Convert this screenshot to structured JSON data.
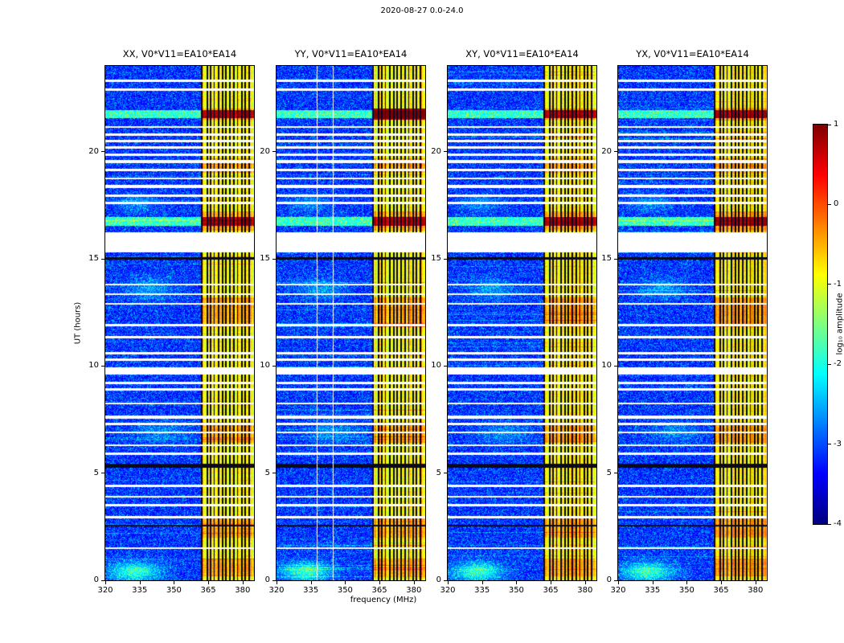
{
  "title": "2020-08-27 0.0-24.0",
  "chart_data": {
    "type": "heatmap",
    "title": "2020-08-27 0.0-24.0",
    "xlabel": "frequency (MHz)",
    "ylabel": "UT (hours)",
    "x_range": [
      320,
      385
    ],
    "x_ticks": [
      320,
      335,
      350,
      365,
      380
    ],
    "y_range": [
      0,
      24
    ],
    "y_ticks": [
      0,
      5,
      10,
      15,
      20
    ],
    "colorbar": {
      "label": "log₁₀ amplitude",
      "ticks": [
        1,
        0,
        -1,
        -2,
        -3,
        -4
      ],
      "range": [
        -4,
        1
      ],
      "colormap": "jet"
    },
    "panels": [
      {
        "id": "XX",
        "title": "XX, V0*V11=EA10*EA14",
        "seed": 11,
        "white_channels": [],
        "red_band_rows": []
      },
      {
        "id": "YY",
        "title": "YY, V0*V11=EA10*EA14",
        "seed": 22,
        "white_channels": [
          337.6,
          344.8
        ],
        "red_band_rows": [
          [
            21.5,
            22.0
          ]
        ]
      },
      {
        "id": "XY",
        "title": "XY, V0*V11=EA10*EA14",
        "seed": 33,
        "white_channels": [],
        "red_band_rows": []
      },
      {
        "id": "YX",
        "title": "YX, V0*V11=EA10*EA14",
        "seed": 44,
        "white_channels": [],
        "red_band_rows": []
      }
    ],
    "features": {
      "band": {
        "f0": 361.8,
        "f1": 385
      },
      "flagged_channels_mhz": [
        362.3,
        364.6,
        366.1,
        367.6,
        369.6,
        371.2,
        372.8,
        374.6,
        376.2,
        377.8,
        379.6,
        381.2,
        383.0
      ],
      "white_rows": [
        [
          23.25,
          23.35
        ],
        [
          22.85,
          22.95
        ],
        [
          21.1,
          21.2
        ],
        [
          20.75,
          20.85
        ],
        [
          20.45,
          20.55
        ],
        [
          20.15,
          20.25
        ],
        [
          19.8,
          19.9
        ],
        [
          19.45,
          19.6
        ],
        [
          19.1,
          19.2
        ],
        [
          18.7,
          18.8
        ],
        [
          18.3,
          18.45
        ],
        [
          17.9,
          18.0
        ],
        [
          17.55,
          17.65
        ],
        [
          13.75,
          13.85
        ],
        [
          13.3,
          13.4
        ],
        [
          12.85,
          12.95
        ],
        [
          11.85,
          11.95
        ],
        [
          11.3,
          11.4
        ],
        [
          10.55,
          10.65
        ],
        [
          10.25,
          10.35
        ],
        [
          9.15,
          9.25
        ],
        [
          8.85,
          8.95
        ],
        [
          8.2,
          8.3
        ],
        [
          7.55,
          7.7
        ],
        [
          7.25,
          7.35
        ],
        [
          6.85,
          6.95
        ],
        [
          6.25,
          6.35
        ],
        [
          5.85,
          5.95
        ],
        [
          4.35,
          4.45
        ],
        [
          3.85,
          3.95
        ],
        [
          3.45,
          3.55
        ],
        [
          2.9,
          3.0
        ],
        [
          1.45,
          1.55
        ]
      ],
      "black_rows": [
        [
          14.95,
          15.08
        ],
        [
          5.25,
          5.45
        ],
        [
          2.5,
          2.6
        ]
      ],
      "bright_rows": [
        [
          21.55,
          21.95
        ],
        [
          16.55,
          16.95
        ]
      ],
      "hot_band_rows": [
        [
          0.2,
          1.0
        ],
        [
          2.0,
          2.9
        ],
        [
          6.4,
          7.4
        ],
        [
          11.8,
          13.2
        ],
        [
          16.3,
          17.2
        ],
        [
          19.0,
          19.7
        ],
        [
          21.5,
          22.0
        ]
      ],
      "gaps": [
        [
          15.3,
          16.25
        ],
        [
          9.6,
          9.95
        ]
      ],
      "blobs": [
        {
          "t": 0.4,
          "f": 333,
          "dt": 0.45,
          "df": 11,
          "amp": 1.3
        },
        {
          "t": 13.6,
          "f": 339,
          "dt": 0.5,
          "df": 10,
          "amp": 0.55
        },
        {
          "t": 17.6,
          "f": 334,
          "dt": 0.4,
          "df": 9,
          "amp": 0.45
        },
        {
          "t": 6.9,
          "f": 345,
          "dt": 0.5,
          "df": 12,
          "amp": 0.4
        }
      ]
    }
  }
}
